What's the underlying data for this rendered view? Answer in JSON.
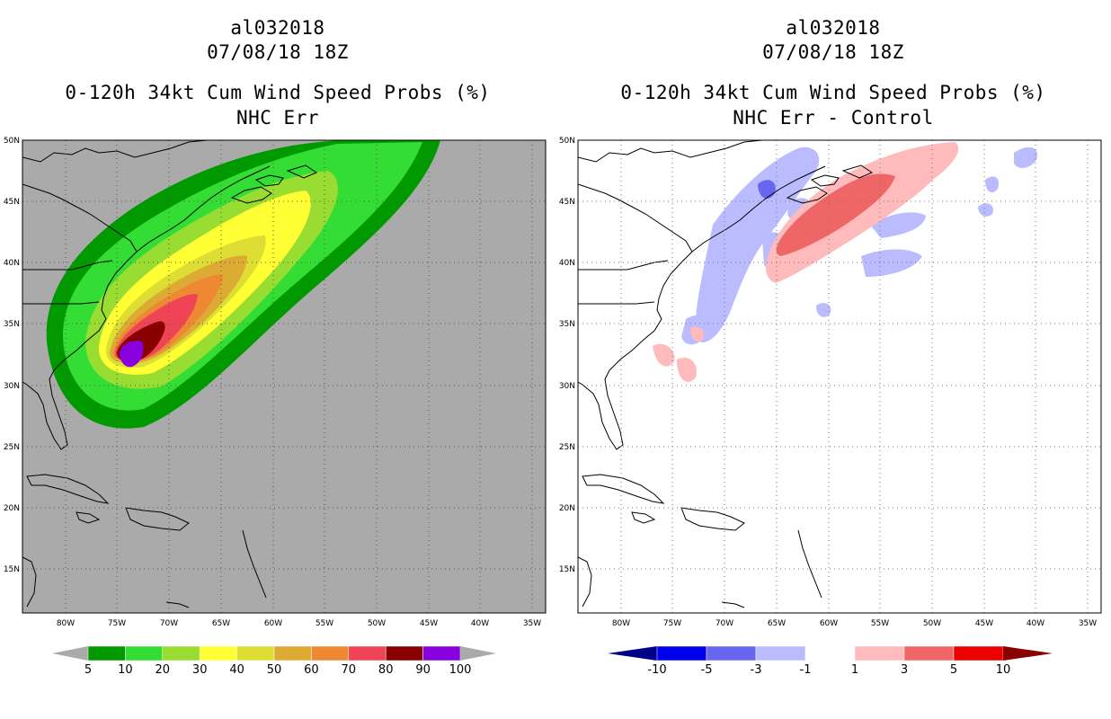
{
  "left": {
    "storm_id": "al032018",
    "datetime": "07/08/18 18Z",
    "product": "0-120h 34kt Cum Wind Speed Probs (%)",
    "subtitle": "NHC Err",
    "colorbar": {
      "labels": [
        "5",
        "10",
        "20",
        "30",
        "40",
        "50",
        "60",
        "70",
        "80",
        "90",
        "100"
      ],
      "colors": [
        "#009900",
        "#33dd33",
        "#99dd33",
        "#ffff33",
        "#dddd33",
        "#ddaa33",
        "#ee8833",
        "#ee4455",
        "#880000",
        "#8800dd"
      ],
      "under_color": "#aaaaaa",
      "over_color": "#aaaaaa"
    }
  },
  "right": {
    "storm_id": "al032018",
    "datetime": "07/08/18 18Z",
    "product": "0-120h 34kt Cum Wind Speed Probs (%)",
    "subtitle": "NHC Err - Control",
    "colorbar": {
      "labels": [
        "-10",
        "-5",
        "-3",
        "-1",
        "1",
        "3",
        "5",
        "10"
      ],
      "colors": [
        "#0000ee",
        "#6666ee",
        "#bbbbff",
        "#ffffff",
        "#ffbbbb",
        "#ee6666",
        "#ee0000"
      ],
      "under_color": "#000088",
      "over_color": "#880000"
    }
  },
  "axes": {
    "lon_labels": [
      "80W",
      "75W",
      "70W",
      "65W",
      "60W",
      "55W",
      "50W",
      "45W",
      "40W",
      "35W"
    ],
    "lat_labels": [
      "50N",
      "45N",
      "40N",
      "35N",
      "30N",
      "25N",
      "20N",
      "15N"
    ]
  },
  "colors": {
    "map_background_left": "#aaaaaa",
    "map_background_right": "#ffffff"
  }
}
